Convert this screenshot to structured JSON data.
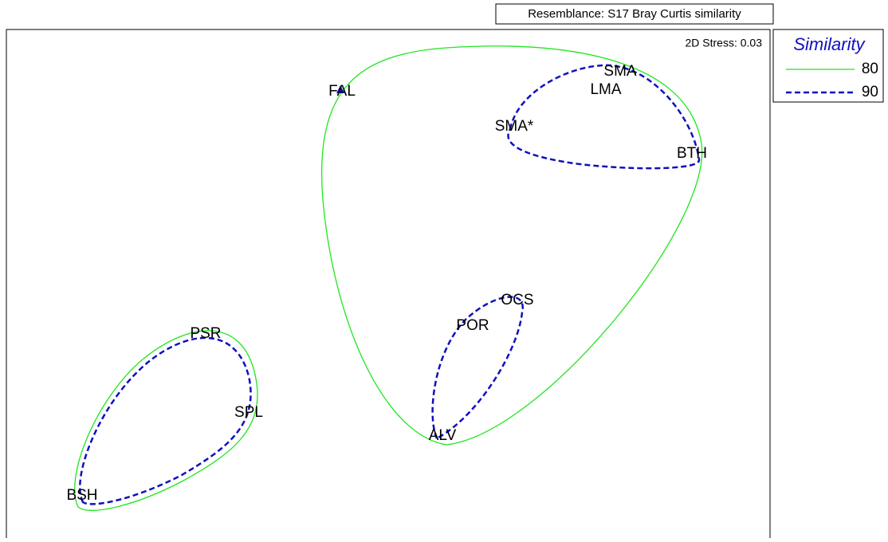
{
  "header": {
    "resemblance": "Resemblance: S17 Bray Curtis similarity",
    "stress": "2D Stress: 0.03"
  },
  "legend": {
    "title": "Similarity",
    "items": [
      {
        "label": "80"
      },
      {
        "label": "90"
      }
    ]
  },
  "nodes": [
    {
      "label": "FAL"
    },
    {
      "label": "SMA"
    },
    {
      "label": "LMA"
    },
    {
      "label": "SMA*"
    },
    {
      "label": "BTH"
    },
    {
      "label": "OCS"
    },
    {
      "label": "POR"
    },
    {
      "label": "ALV"
    },
    {
      "label": "PSR"
    },
    {
      "label": "SPL"
    },
    {
      "label": "BSH"
    }
  ]
}
